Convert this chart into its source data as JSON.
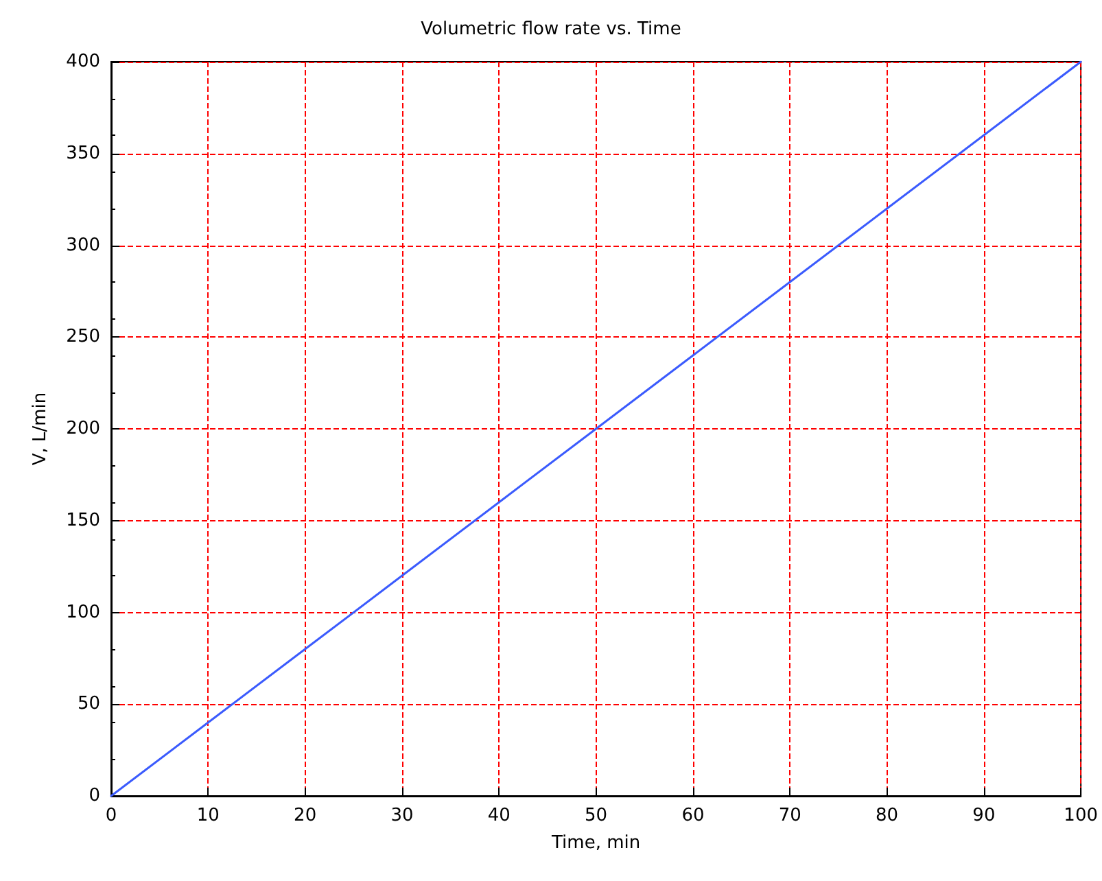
{
  "chart_data": {
    "type": "line",
    "title": "Volumetric flow rate vs. Time",
    "xlabel": "Time, min",
    "ylabel": "V, L/min",
    "x": [
      0,
      10,
      20,
      30,
      40,
      50,
      60,
      70,
      80,
      90,
      100
    ],
    "series": [
      {
        "color": "#3b5bfd",
        "values": [
          0,
          40,
          80,
          120,
          160,
          200,
          240,
          280,
          320,
          360,
          400
        ]
      }
    ],
    "xlim": [
      0,
      100
    ],
    "xticks": [
      0,
      10,
      20,
      30,
      40,
      50,
      60,
      70,
      80,
      90,
      100
    ],
    "ylim": [
      0,
      400
    ],
    "yticks": [
      0,
      50,
      100,
      150,
      200,
      250,
      300,
      350,
      400
    ],
    "grid": true,
    "marker": "none",
    "line_style": "solid"
  }
}
